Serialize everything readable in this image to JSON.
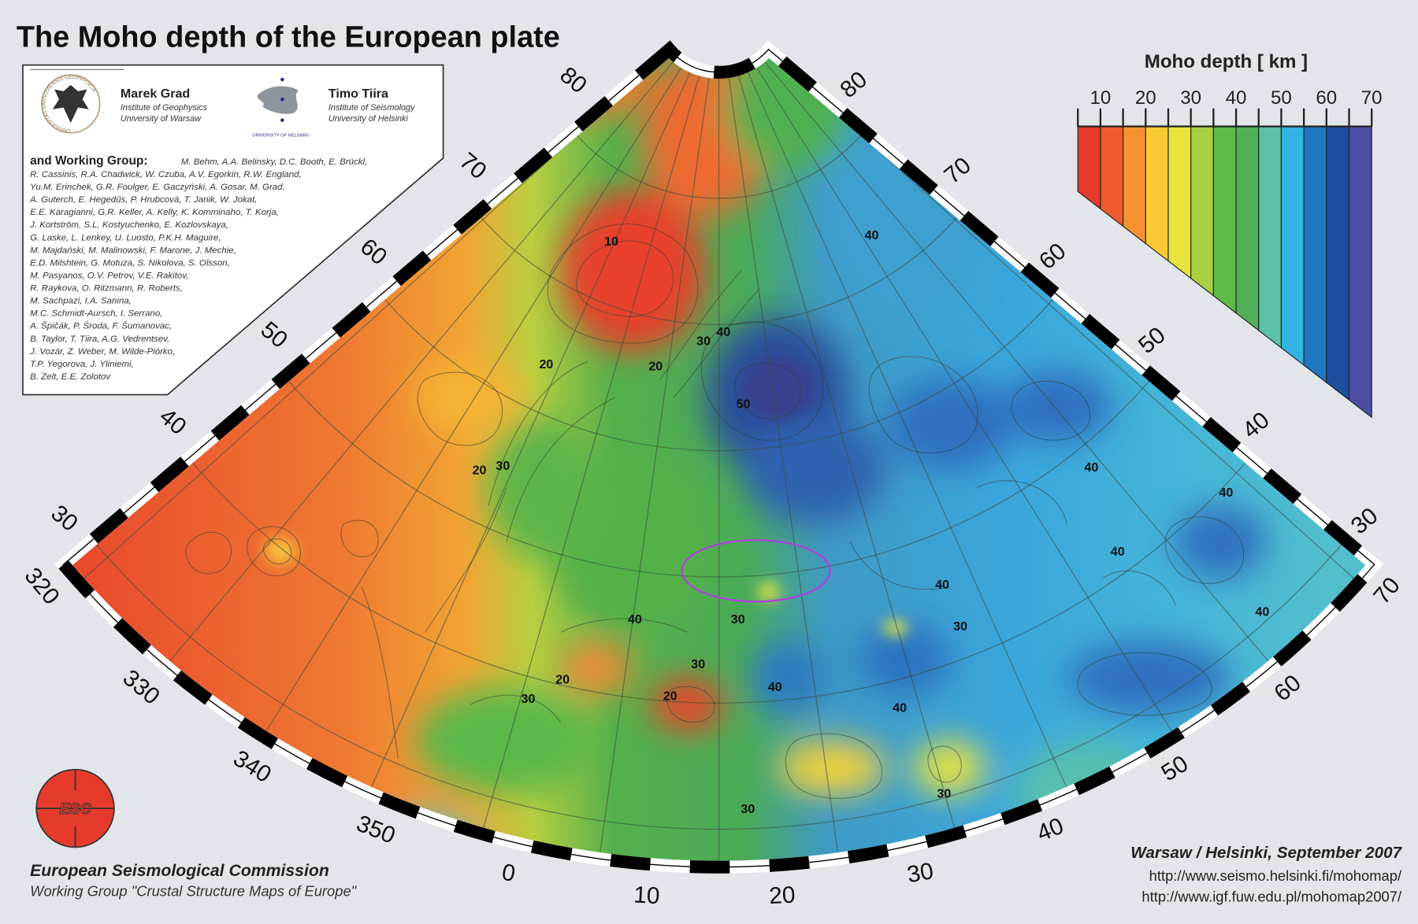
{
  "title": "The Moho depth of the European plate",
  "authors": {
    "author1": {
      "name": "Marek Grad",
      "affil1": "Institute of Geophysics",
      "affil2": "University of Warsaw"
    },
    "author2": {
      "name": "Timo Tiira",
      "affil1": "Institute of Seismology",
      "affil2": "University of Helsinki"
    },
    "helsinki_logo_text": "UNIVERSITY OF HELSINKI",
    "warsaw_seal_text": "UNIVERSITAS VARSOVIENSIS GEOPHYSICA",
    "working_group_label": "and Working Group:",
    "working_group_lines": [
      "M. Behm, A.A. Belinsky, D.C. Booth, E. Brückl,",
      "R. Cassinis, R.A. Chadwick, W. Czuba, A.V. Egorkin, R.W. England,",
      "Yu.M. Erinchek, G.R. Foulger, E. Gaczyński, A. Gosar, M. Grad,",
      "A. Guterch, E. Hegedűs, P. Hrubcová, T. Janik, W. Jokat,",
      "E.E. Karagianni, G.R. Keller, A. Kelly, K. Komminaho, T. Korja,",
      "J. Kortström, S.L. Kostyuchenko, E. Kozlovskaya,",
      "G. Laske, L. Lenkey, U. Luosto, P.K.H. Maguire,",
      "M. Majdański, M. Malinowski, F. Marone, J. Mechie,",
      "E.D. Milshtein, G. Motuza, S. Nikolova, S. Olsson,",
      "M. Pasyanos, O.V. Petrov, V.E. Rakitov,",
      "R. Raykova, O. Ritzmann, R. Roberts,",
      "M. Sachpazi, I.A. Sanina,",
      "M.C. Schmidt-Aursch, I. Serrano,",
      "A. Špičák, P. Środa, F. Šumanovac,",
      "B. Taylor, T. Tiira, A.G. Vedrentsev,",
      "J. Vozár, Z. Weber, M. Wilde-Piórko,",
      "T.P. Yegorova, J. Yliniemi,",
      "B. Zelt, E.E. Zolotov"
    ]
  },
  "legend": {
    "title": "Moho depth   [ km ]",
    "tick_labels": [
      "10",
      "20",
      "30",
      "40",
      "50",
      "60",
      "70"
    ],
    "bin_edges": [
      5,
      10,
      15,
      20,
      25,
      30,
      35,
      40,
      45,
      50,
      55,
      60,
      65,
      70
    ],
    "colors": [
      "#e53a2c",
      "#ee5a2b",
      "#f5922f",
      "#f9c934",
      "#e8e43a",
      "#a9d043",
      "#5dbb4a",
      "#4fb055",
      "#5cc1a6",
      "#2fb4e4",
      "#1f77c0",
      "#1d4f9e",
      "#4b4ea2",
      "#7a4fa3",
      "#a25aa8"
    ]
  },
  "map": {
    "latitude_labels_left": [
      "80",
      "70",
      "60",
      "50",
      "40",
      "30"
    ],
    "latitude_labels_right": [
      "80",
      "70",
      "60",
      "50",
      "40",
      "30"
    ],
    "longitude_labels": [
      "320",
      "330",
      "340",
      "350",
      "0",
      "10",
      "20",
      "30",
      "40",
      "50",
      "60",
      "70"
    ],
    "contour_labels": [
      "10",
      "20",
      "20",
      "30",
      "40",
      "50",
      "20",
      "30",
      "40",
      "40",
      "40",
      "40",
      "40",
      "40",
      "30",
      "40",
      "30",
      "20",
      "30",
      "30",
      "20",
      "40",
      "40",
      "30",
      "30"
    ],
    "highlight_color": "#b040e0"
  },
  "footer": {
    "org": "European Seismological Commission",
    "group": "Working Group \"Crustal Structure Maps of Europe\"",
    "place_date": "Warsaw / Helsinki, September 2007",
    "url1": "http://www.seismo.helsinki.fi/mohomap/",
    "url2": "http://www.igf.fuw.edu.pl/mohomap2007/",
    "esc_logo_text": "ESC"
  }
}
